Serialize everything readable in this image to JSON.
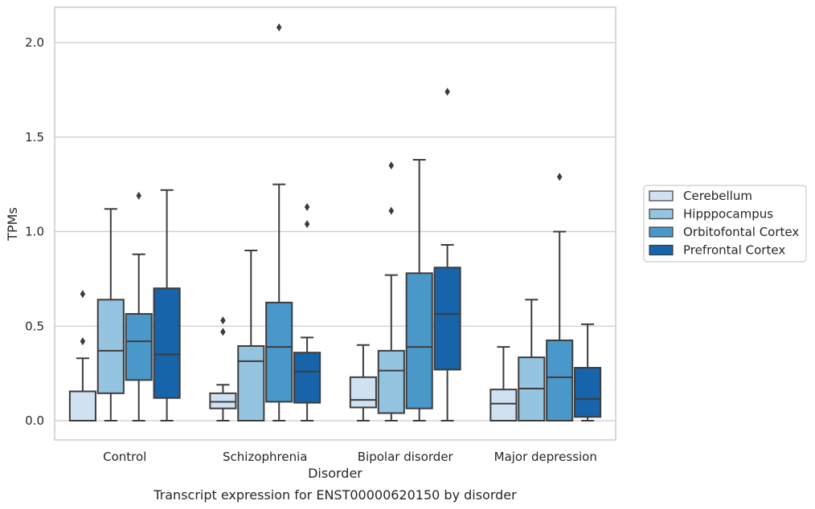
{
  "chart_data": {
    "type": "box",
    "caption": "Transcript expression for ENST00000620150 by disorder",
    "xlabel": "Disorder",
    "ylabel": "TPMs",
    "ylim": [
      -0.1,
      2.2
    ],
    "yticks": [
      0.0,
      0.5,
      1.0,
      1.5,
      2.0
    ],
    "ytick_labels": [
      "0.0",
      "0.5",
      "1.0",
      "1.5",
      "2.0"
    ],
    "grid": "y",
    "legend_position": "right",
    "categories": [
      "Control",
      "Schizophrenia",
      "Bipolar disorder",
      "Major depression"
    ],
    "series": [
      {
        "name": "Cerebellum",
        "color": "#d0e1f2",
        "boxes": [
          {
            "q1": 0.0,
            "median": 0.0,
            "q3": 0.155,
            "whislo": 0.0,
            "whishi": 0.33,
            "fliers": [
              0.42,
              0.67
            ]
          },
          {
            "q1": 0.065,
            "median": 0.1,
            "q3": 0.145,
            "whislo": 0.0,
            "whishi": 0.19,
            "fliers": [
              0.47,
              0.53
            ]
          },
          {
            "q1": 0.07,
            "median": 0.11,
            "q3": 0.23,
            "whislo": 0.0,
            "whishi": 0.4,
            "fliers": []
          },
          {
            "q1": 0.0,
            "median": 0.09,
            "q3": 0.165,
            "whislo": 0.0,
            "whishi": 0.39,
            "fliers": []
          }
        ]
      },
      {
        "name": "Hipppocampus",
        "color": "#94c4df",
        "boxes": [
          {
            "q1": 0.145,
            "median": 0.37,
            "q3": 0.64,
            "whislo": 0.0,
            "whishi": 1.12,
            "fliers": []
          },
          {
            "q1": 0.0,
            "median": 0.315,
            "q3": 0.395,
            "whislo": 0.0,
            "whishi": 0.9,
            "fliers": []
          },
          {
            "q1": 0.04,
            "median": 0.265,
            "q3": 0.37,
            "whislo": 0.0,
            "whishi": 0.77,
            "fliers": [
              1.11,
              1.35
            ]
          },
          {
            "q1": 0.0,
            "median": 0.17,
            "q3": 0.335,
            "whislo": 0.0,
            "whishi": 0.64,
            "fliers": []
          }
        ]
      },
      {
        "name": "Orbitofontal Cortex",
        "color": "#4a98c9",
        "boxes": [
          {
            "q1": 0.215,
            "median": 0.42,
            "q3": 0.565,
            "whislo": 0.0,
            "whishi": 0.88,
            "fliers": [
              1.19
            ]
          },
          {
            "q1": 0.1,
            "median": 0.39,
            "q3": 0.625,
            "whislo": 0.0,
            "whishi": 1.25,
            "fliers": [
              2.08
            ]
          },
          {
            "q1": 0.065,
            "median": 0.39,
            "q3": 0.78,
            "whislo": 0.0,
            "whishi": 1.38,
            "fliers": []
          },
          {
            "q1": 0.0,
            "median": 0.23,
            "q3": 0.425,
            "whislo": 0.0,
            "whishi": 1.0,
            "fliers": [
              1.29
            ]
          }
        ]
      },
      {
        "name": "Prefrontal Cortex",
        "color": "#1764ab",
        "boxes": [
          {
            "q1": 0.12,
            "median": 0.35,
            "q3": 0.7,
            "whislo": 0.0,
            "whishi": 1.22,
            "fliers": []
          },
          {
            "q1": 0.095,
            "median": 0.26,
            "q3": 0.36,
            "whislo": 0.0,
            "whishi": 0.44,
            "fliers": [
              1.04,
              1.13
            ]
          },
          {
            "q1": 0.27,
            "median": 0.565,
            "q3": 0.81,
            "whislo": 0.0,
            "whishi": 0.93,
            "fliers": [
              1.74
            ]
          },
          {
            "q1": 0.02,
            "median": 0.115,
            "q3": 0.28,
            "whislo": 0.0,
            "whishi": 0.51,
            "fliers": []
          }
        ]
      }
    ]
  }
}
